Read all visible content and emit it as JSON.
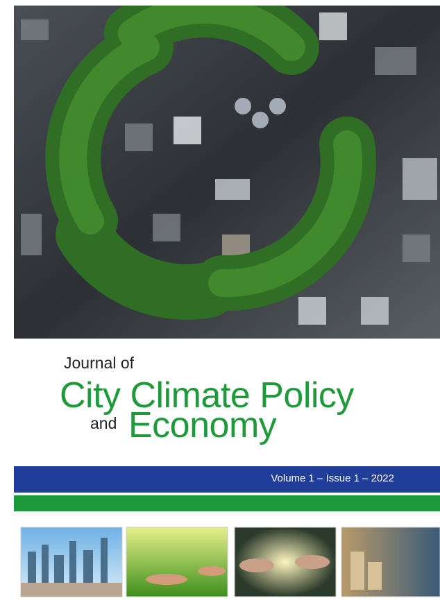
{
  "cover": {
    "journal_prefix": "Journal of",
    "title_line1": "City Climate Policy",
    "title_and": "and",
    "title_line2": "Economy",
    "issue": "Volume 1 – Issue 1 – 2022"
  }
}
